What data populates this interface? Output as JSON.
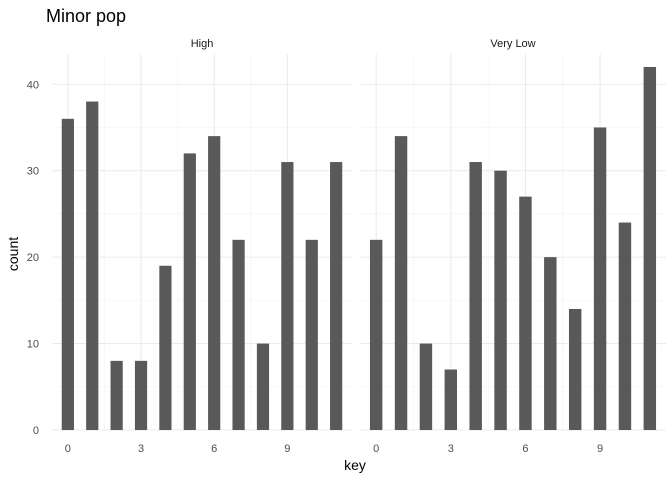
{
  "chart_data": {
    "type": "bar",
    "title": "Minor pop",
    "xlabel": "key",
    "ylabel": "count",
    "x": [
      0,
      1,
      2,
      3,
      4,
      5,
      6,
      7,
      8,
      9,
      10,
      11
    ],
    "xticks": [
      0,
      3,
      6,
      9
    ],
    "yticks": [
      0,
      10,
      20,
      30,
      40
    ],
    "ylim": [
      0,
      43.5
    ],
    "xlim": [
      -0.65,
      11.65
    ],
    "grid": true,
    "bar_color": "#595959",
    "panels": [
      {
        "name": "High",
        "values": [
          36,
          38,
          8,
          8,
          19,
          32,
          34,
          22,
          10,
          31,
          22,
          31
        ]
      },
      {
        "name": "Very Low",
        "values": [
          22,
          34,
          10,
          7,
          31,
          30,
          27,
          20,
          14,
          35,
          24,
          42
        ]
      }
    ]
  }
}
